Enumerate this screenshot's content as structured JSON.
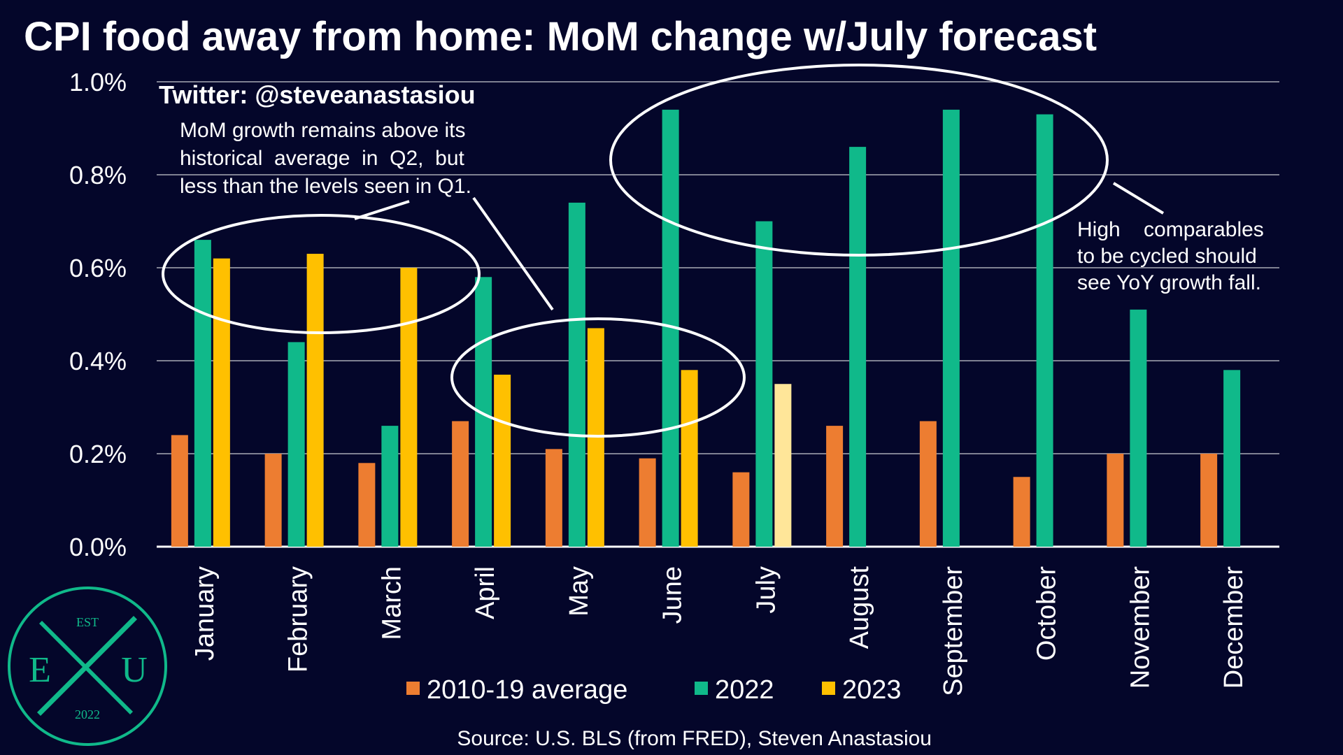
{
  "colors": {
    "background": "#04062a",
    "avg": "#ed7d31",
    "y2022": "#10b98a",
    "y2023": "#ffc000",
    "forecast": "#ffe699",
    "grid": "#7f8192",
    "logo": "#10b98a"
  },
  "source": "Source: U.S. BLS (from FRED), Steven Anastasiou",
  "logo": {
    "top": "EST",
    "left": "E",
    "right": "U",
    "bottom": "2022"
  },
  "annotations": {
    "twitter": "Twitter: @steveanastasiou",
    "q2_note": [
      "MoM growth remains above its",
      "historical  average  in  Q2,  but",
      "less than the levels seen in Q1."
    ],
    "cycle_note": [
      "High    comparables",
      "to be cycled should",
      "see YoY growth fall."
    ]
  },
  "chart_data": {
    "type": "bar",
    "title": "CPI food away from home: MoM change w/July forecast",
    "categories": [
      "January",
      "February",
      "March",
      "April",
      "May",
      "June",
      "July",
      "August",
      "September",
      "October",
      "November",
      "December"
    ],
    "series": [
      {
        "name": "2010-19 average",
        "values": [
          0.24,
          0.2,
          0.18,
          0.27,
          0.21,
          0.19,
          0.16,
          0.26,
          0.27,
          0.15,
          0.2,
          0.2
        ]
      },
      {
        "name": "2022",
        "values": [
          0.66,
          0.44,
          0.26,
          0.58,
          0.74,
          0.94,
          0.7,
          0.86,
          0.94,
          0.93,
          0.51,
          0.38
        ]
      },
      {
        "name": "2023",
        "values": [
          0.62,
          0.63,
          0.6,
          0.37,
          0.47,
          0.38,
          0.35,
          null,
          null,
          null,
          null,
          null
        ],
        "forecast_categories": [
          "July"
        ]
      }
    ],
    "ylim": [
      0,
      1.0
    ],
    "yticks": [
      0.0,
      0.2,
      0.4,
      0.6,
      0.8,
      1.0
    ],
    "ytick_labels": [
      "0.0%",
      "0.2%",
      "0.4%",
      "0.6%",
      "0.8%",
      "1.0%"
    ],
    "grid": true,
    "legend_position": "bottom"
  }
}
